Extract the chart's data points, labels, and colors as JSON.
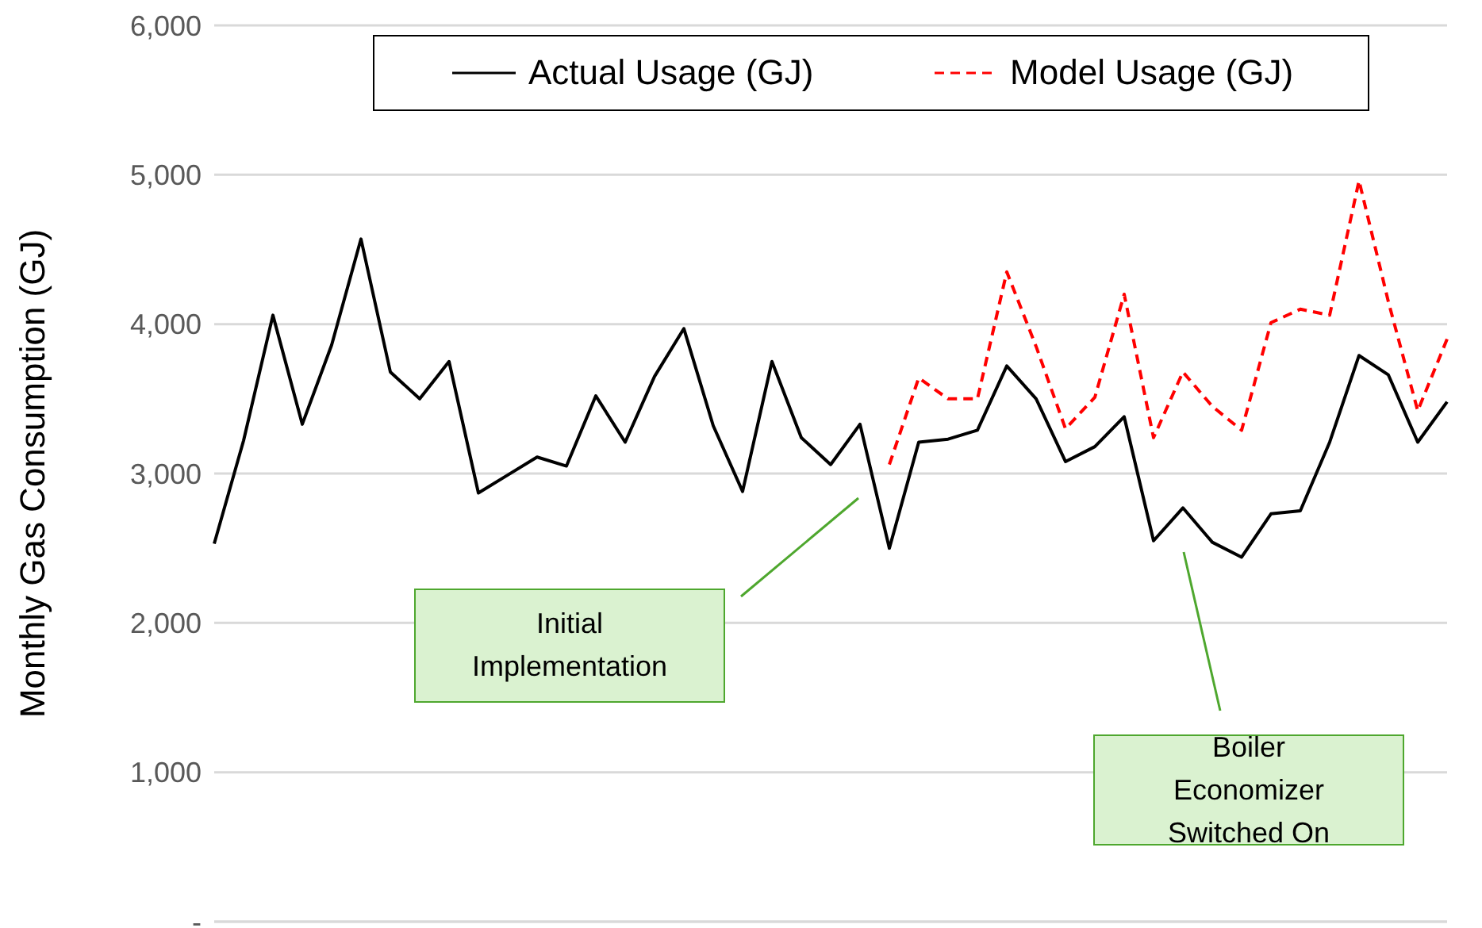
{
  "chart_data": {
    "type": "line",
    "ylabel": "Monthly Gas Consumption (GJ)",
    "categories": [
      null,
      null,
      null,
      null,
      null,
      null,
      null,
      null,
      null,
      null,
      null,
      null,
      null,
      null,
      null,
      null,
      null,
      null,
      null,
      null,
      null,
      null,
      null,
      null,
      null,
      null,
      null,
      null,
      null,
      null,
      null,
      null,
      null,
      null,
      null,
      null,
      null,
      null,
      null,
      null,
      null,
      null,
      null
    ],
    "series": [
      {
        "name": "Actual Usage (GJ)",
        "color": "#000000",
        "line_style": "solid",
        "values": [
          2530,
          3220,
          4060,
          3330,
          3860,
          4570,
          3680,
          3500,
          3750,
          2870,
          2990,
          3110,
          3050,
          3520,
          3210,
          3650,
          3970,
          3320,
          2880,
          3750,
          3240,
          3060,
          3330,
          2500,
          3210,
          3230,
          3290,
          3720,
          3500,
          3080,
          3180,
          3380,
          2550,
          2770,
          2540,
          2440,
          2730,
          2750,
          3210,
          3790,
          3660,
          3210,
          3480
        ]
      },
      {
        "name": "Model Usage (GJ)",
        "color": "#ff0000",
        "line_style": "dashed",
        "values": [
          null,
          null,
          null,
          null,
          null,
          null,
          null,
          null,
          null,
          null,
          null,
          null,
          null,
          null,
          null,
          null,
          null,
          null,
          null,
          null,
          null,
          null,
          null,
          3060,
          3640,
          3500,
          3500,
          4350,
          3850,
          3300,
          3510,
          4200,
          3240,
          3680,
          3450,
          3290,
          4010,
          4100,
          4060,
          4960,
          4150,
          3420,
          3900
        ]
      }
    ],
    "ylim": [
      0,
      6000
    ],
    "yticks": [
      {
        "value": 0,
        "label": "-"
      },
      {
        "value": 1000,
        "label": "1,000"
      },
      {
        "value": 2000,
        "label": "2,000"
      },
      {
        "value": 3000,
        "label": "3,000"
      },
      {
        "value": 4000,
        "label": "4,000"
      },
      {
        "value": 5000,
        "label": "5,000"
      },
      {
        "value": 6000,
        "label": "6,000"
      }
    ],
    "grid": "y",
    "legend": "top",
    "marker": "none",
    "tick_labels": "y",
    "annotations": [
      "Initial Implementation",
      "Boiler Economizer Switched On"
    ]
  }
}
